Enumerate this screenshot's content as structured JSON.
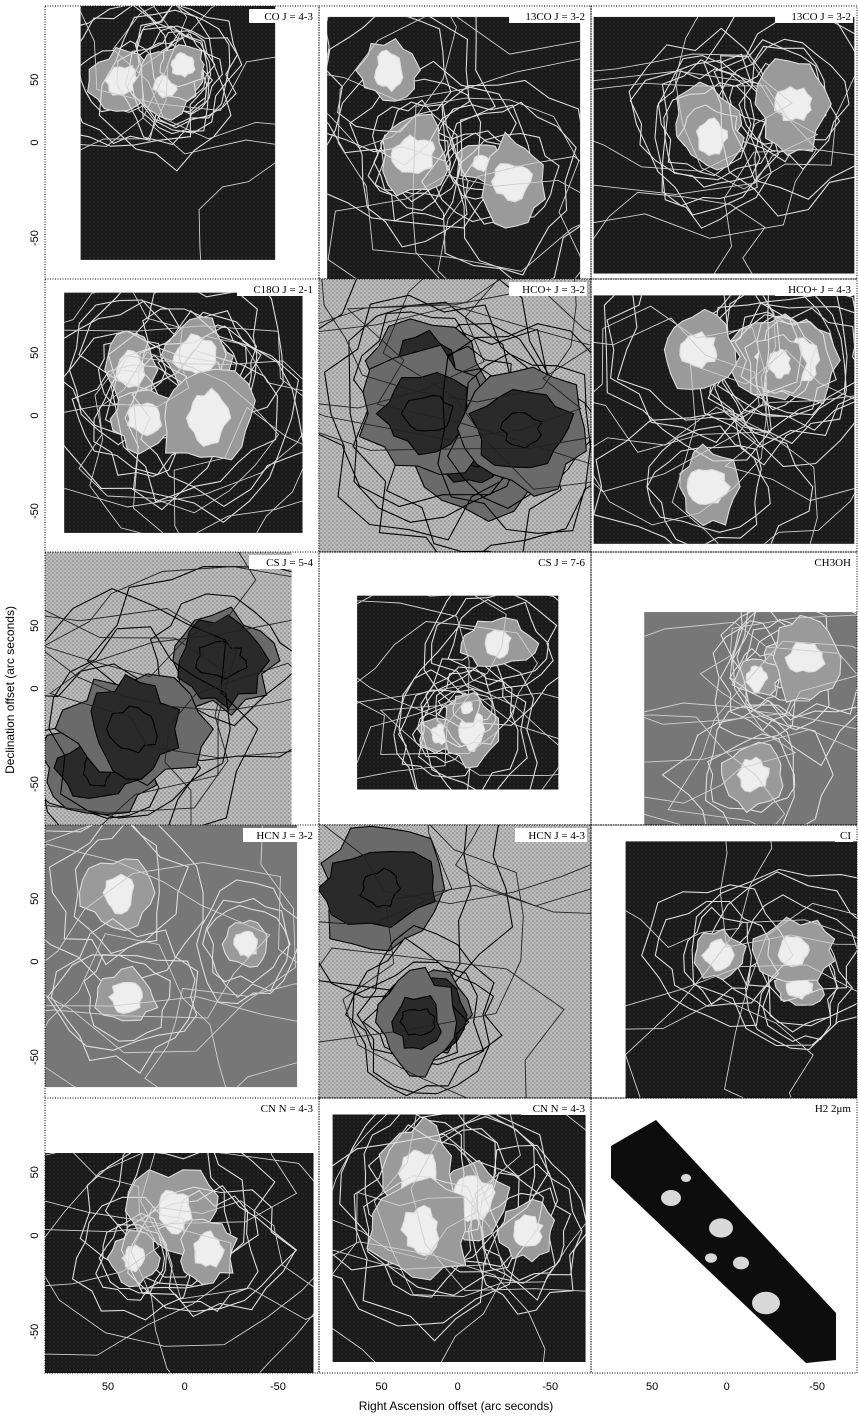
{
  "figure": {
    "ylabel": "Declination offset (arc seconds)",
    "xlabel": "Right Ascension offset (arc seconds)",
    "x_ticks": [
      "50",
      "0",
      "-50"
    ],
    "y_ticks": [
      "50",
      "0",
      "-50"
    ],
    "panels": [
      {
        "label": "CO J = 4-3"
      },
      {
        "label": "13CO J = 3-2"
      },
      {
        "label": "13CO J = 3-2"
      },
      {
        "label": "C18O J = 2-1"
      },
      {
        "label": "HCO+ J = 3-2"
      },
      {
        "label": "HCO+ J = 4-3"
      },
      {
        "label": "CS J = 5-4"
      },
      {
        "label": "CS J = 7-6"
      },
      {
        "label": "CH3OH"
      },
      {
        "label": "HCN J = 3-2"
      },
      {
        "label": "HCN J = 4-3"
      },
      {
        "label": "CI"
      },
      {
        "label": "CN N = 4-3"
      },
      {
        "label": "CN N = 4-3"
      },
      {
        "label": "H2 2μm"
      }
    ]
  },
  "colors": {
    "background": "#ffffff",
    "dark": "#111111",
    "mid": "#777777",
    "light": "#c8c8c8",
    "contour_light": "#dddddd",
    "contour_dark": "#000000"
  }
}
